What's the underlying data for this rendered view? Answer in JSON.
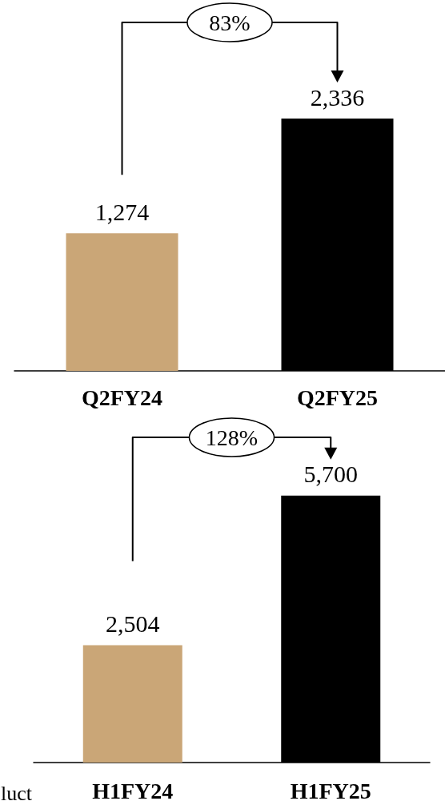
{
  "chart_data": [
    {
      "type": "bar",
      "categories": [
        "Q2FY24",
        "Q2FY25"
      ],
      "values": [
        1274,
        2336
      ],
      "value_labels": [
        "1,274",
        "2,336"
      ],
      "colors": [
        "#caa677",
        "#000000"
      ],
      "tick_labels": "x",
      "annotations": [
        "83%"
      ]
    },
    {
      "type": "bar",
      "categories": [
        "H1FY24",
        "H1FY25"
      ],
      "values": [
        2504,
        5700
      ],
      "value_labels": [
        "2,504",
        "5,700"
      ],
      "colors": [
        "#caa677",
        "#000000"
      ],
      "tick_labels": "x",
      "annotations": [
        "128%",
        "luct"
      ]
    }
  ]
}
